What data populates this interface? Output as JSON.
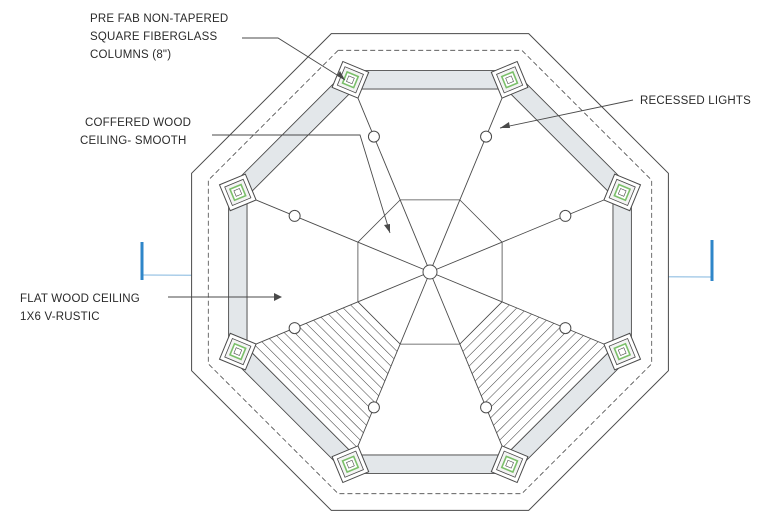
{
  "labels": {
    "columns": [
      "PRE FAB NON-TAPERED",
      "SQUARE FIBERGLASS",
      "COLUMNS (8\")"
    ],
    "coffered": [
      "COFFERED WOOD",
      "CEILING- SMOOTH"
    ],
    "lights": [
      "RECESSED LIGHTS"
    ],
    "flat": [
      "FLAT WOOD CEILING",
      "1X6 V-RUSTIC"
    ]
  },
  "colors": {
    "line": "#4a4a4a",
    "beam_fill": "#e3e7ea",
    "column_accent": "#7bbf6a",
    "section_marker": "#2f86c9"
  },
  "icons": {
    "column": "square-column-icon",
    "light": "recessed-light-icon",
    "section": "section-cut-marker-icon"
  }
}
